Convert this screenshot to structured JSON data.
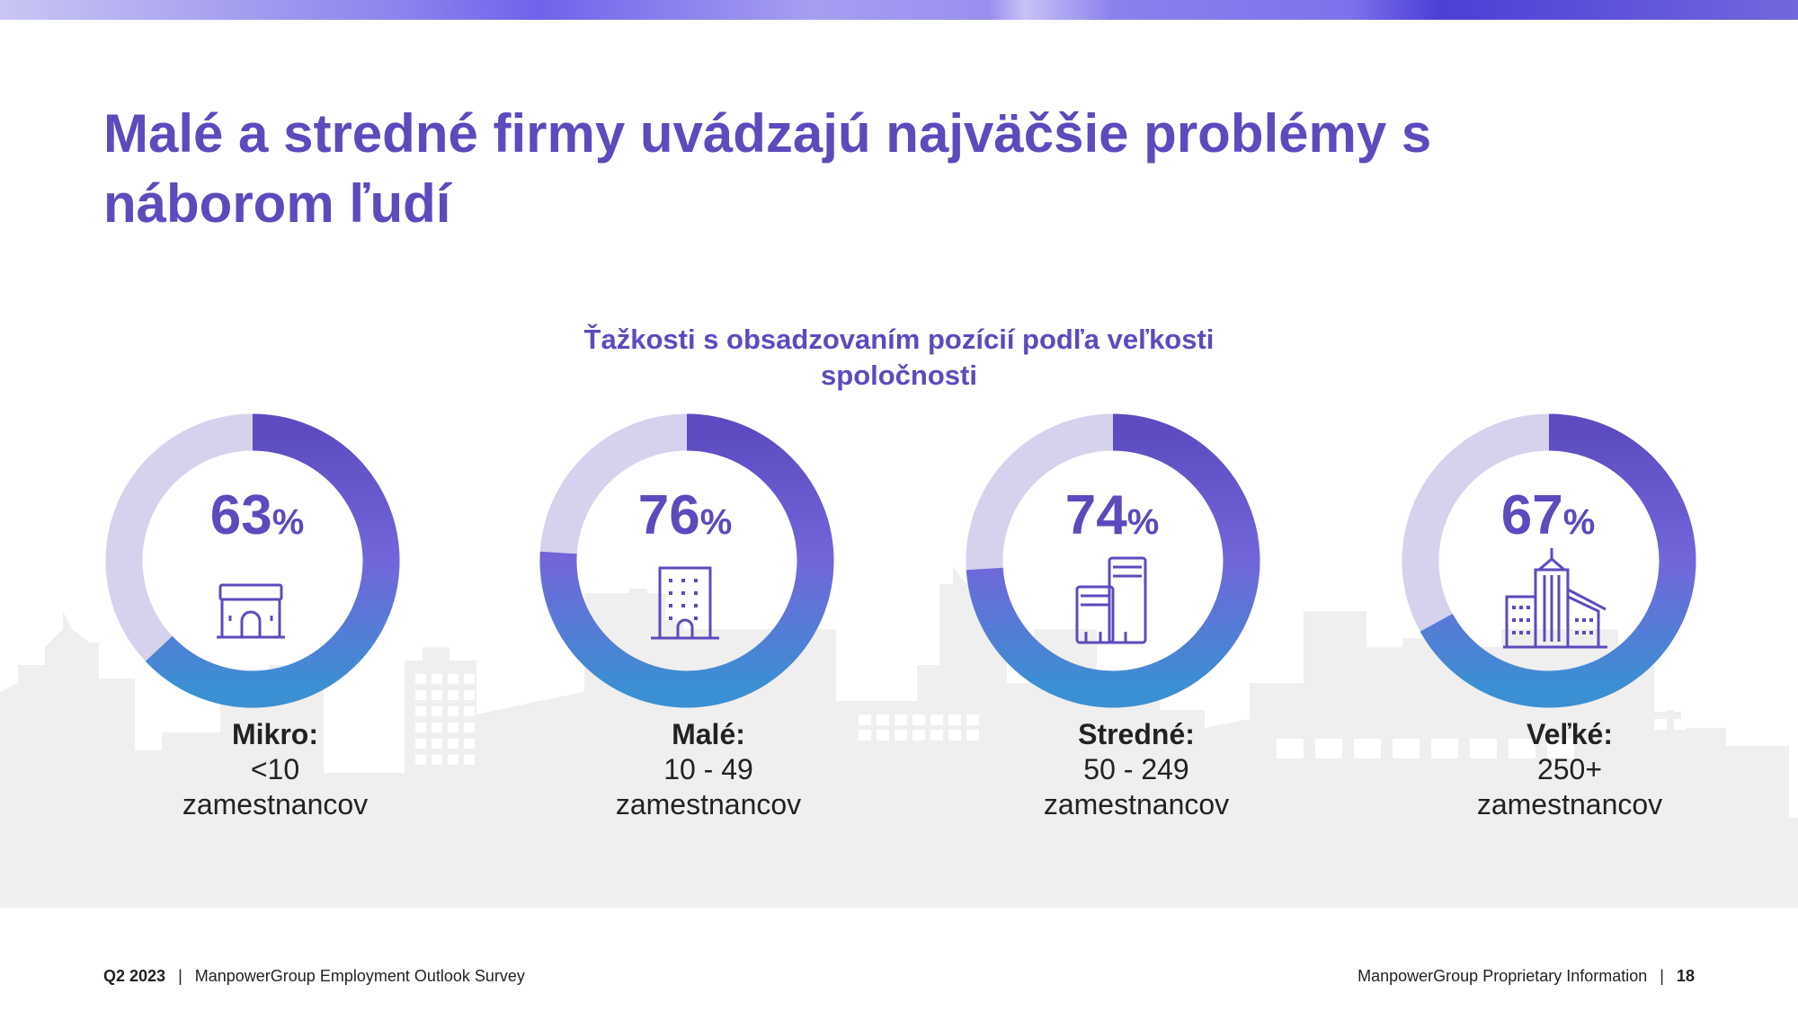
{
  "title": "Malé a stredné firmy uvádzajú najväčšie problémy s náborom ľudí",
  "colors": {
    "accent": "#5b4bbd",
    "track": "#d5d2ee",
    "arc_top": "#5d4cc1",
    "arc_mid": "#7266da",
    "arc_bottom": "#3a90d2"
  },
  "chart_data": {
    "type": "pie",
    "title": "Ťažkosti s obsadzovaním pozícií podľa veľkosti spoločnosti",
    "unit": "%",
    "categories": [
      "Mikro:",
      "Malé:",
      "Stredné:",
      "Veľké:"
    ],
    "ranges": [
      "<10",
      "10 - 49",
      "50 - 249",
      "250+"
    ],
    "unit_label": "zamestnancov",
    "values": [
      63,
      76,
      74,
      67
    ],
    "icons": [
      "small-shop-icon",
      "office-building-icon",
      "two-towers-icon",
      "skyscraper-icon"
    ]
  },
  "footer": {
    "period": "Q2 2023",
    "survey": "ManpowerGroup Employment Outlook Survey",
    "proprietary": "ManpowerGroup Proprietary Information",
    "page": "18",
    "separator": "|"
  }
}
